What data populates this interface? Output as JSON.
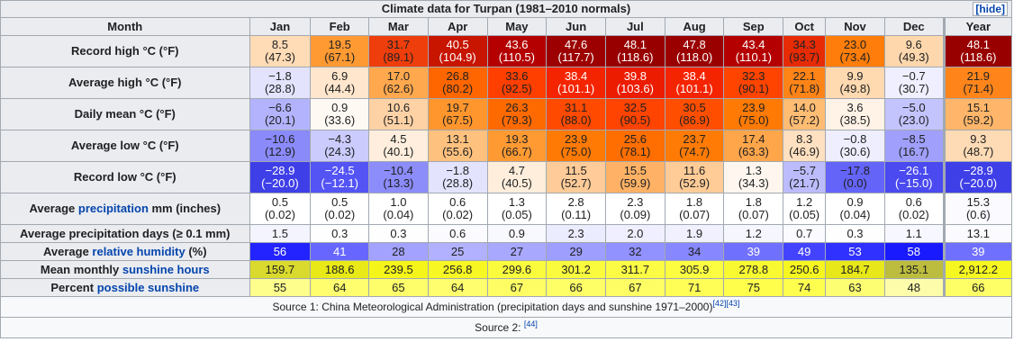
{
  "title": "Climate data for Turpan (1981–2010 normals)",
  "hide_label": "[hide]",
  "header": {
    "month": "Month",
    "months": [
      "Jan",
      "Feb",
      "Mar",
      "Apr",
      "May",
      "Jun",
      "Jul",
      "Aug",
      "Sep",
      "Oct",
      "Nov",
      "Dec",
      "Year"
    ]
  },
  "rows": [
    {
      "label": "Record high °C (°F)",
      "cells": [
        {
          "v": "8.5",
          "f": "(47.3)",
          "bg": "#ffdbb6",
          "fg": "#202122"
        },
        {
          "v": "19.5",
          "f": "(67.1)",
          "bg": "#ff9a33",
          "fg": "#202122"
        },
        {
          "v": "31.7",
          "f": "(89.1)",
          "bg": "#ee3e0c",
          "fg": "#202122"
        },
        {
          "v": "40.5",
          "f": "(104.9)",
          "bg": "#c71500",
          "fg": "#ffffff"
        },
        {
          "v": "43.6",
          "f": "(110.5)",
          "bg": "#b40000",
          "fg": "#ffffff"
        },
        {
          "v": "47.6",
          "f": "(117.7)",
          "bg": "#9c0000",
          "fg": "#ffffff"
        },
        {
          "v": "48.1",
          "f": "(118.6)",
          "bg": "#980000",
          "fg": "#ffffff"
        },
        {
          "v": "47.8",
          "f": "(118.0)",
          "bg": "#9a0000",
          "fg": "#ffffff"
        },
        {
          "v": "43.4",
          "f": "(110.1)",
          "bg": "#b40000",
          "fg": "#ffffff"
        },
        {
          "v": "34.3",
          "f": "(93.7)",
          "bg": "#e62b05",
          "fg": "#202122"
        },
        {
          "v": "23.0",
          "f": "(73.4)",
          "bg": "#ff7d0a",
          "fg": "#202122"
        },
        {
          "v": "9.6",
          "f": "(49.3)",
          "bg": "#ffd7ad",
          "fg": "#202122"
        },
        {
          "v": "48.1",
          "f": "(118.6)",
          "bg": "#980000",
          "fg": "#ffffff"
        }
      ]
    },
    {
      "label": "Average high °C (°F)",
      "cells": [
        {
          "v": "−1.8",
          "f": "(28.8)",
          "bg": "#e3e3fe",
          "fg": "#202122"
        },
        {
          "v": "6.9",
          "f": "(44.4)",
          "bg": "#ffe6cc",
          "fg": "#202122"
        },
        {
          "v": "17.0",
          "f": "(62.6)",
          "bg": "#ffa84e",
          "fg": "#202122"
        },
        {
          "v": "26.8",
          "f": "(80.2)",
          "bg": "#ff6600",
          "fg": "#202122"
        },
        {
          "v": "33.6",
          "f": "(92.5)",
          "bg": "#ff3f00",
          "fg": "#202122"
        },
        {
          "v": "38.4",
          "f": "(101.1)",
          "bg": "#f52400",
          "fg": "#ffffff"
        },
        {
          "v": "39.8",
          "f": "(103.6)",
          "bg": "#ec1c00",
          "fg": "#ffffff"
        },
        {
          "v": "38.4",
          "f": "(101.1)",
          "bg": "#f52400",
          "fg": "#ffffff"
        },
        {
          "v": "32.3",
          "f": "(90.1)",
          "bg": "#ff4400",
          "fg": "#202122"
        },
        {
          "v": "22.1",
          "f": "(71.8)",
          "bg": "#ff8418",
          "fg": "#202122"
        },
        {
          "v": "9.9",
          "f": "(49.8)",
          "bg": "#ffd9b0",
          "fg": "#202122"
        },
        {
          "v": "−0.7",
          "f": "(30.7)",
          "bg": "#efefff",
          "fg": "#202122"
        },
        {
          "v": "21.9",
          "f": "(71.4)",
          "bg": "#ff851b",
          "fg": "#202122"
        }
      ]
    },
    {
      "label": "Daily mean °C (°F)",
      "cells": [
        {
          "v": "−6.6",
          "f": "(20.1)",
          "bg": "#b3b3fd",
          "fg": "#202122"
        },
        {
          "v": "0.9",
          "f": "(33.6)",
          "bg": "#fff9f4",
          "fg": "#202122"
        },
        {
          "v": "10.6",
          "f": "(51.1)",
          "bg": "#ffd2a6",
          "fg": "#202122"
        },
        {
          "v": "19.7",
          "f": "(67.5)",
          "bg": "#ff962d",
          "fg": "#202122"
        },
        {
          "v": "26.3",
          "f": "(79.3)",
          "bg": "#ff6a00",
          "fg": "#202122"
        },
        {
          "v": "31.1",
          "f": "(88.0)",
          "bg": "#ff4a00",
          "fg": "#202122"
        },
        {
          "v": "32.5",
          "f": "(90.5)",
          "bg": "#ff4300",
          "fg": "#202122"
        },
        {
          "v": "30.5",
          "f": "(86.9)",
          "bg": "#ff4e00",
          "fg": "#202122"
        },
        {
          "v": "23.9",
          "f": "(75.0)",
          "bg": "#ff7a04",
          "fg": "#202122"
        },
        {
          "v": "14.0",
          "f": "(57.2)",
          "bg": "#ffbc73",
          "fg": "#202122"
        },
        {
          "v": "3.6",
          "f": "(38.5)",
          "bg": "#fff2e6",
          "fg": "#202122"
        },
        {
          "v": "−5.0",
          "f": "(23.0)",
          "bg": "#c3c3fe",
          "fg": "#202122"
        },
        {
          "v": "15.1",
          "f": "(59.2)",
          "bg": "#ffb66a",
          "fg": "#202122"
        }
      ]
    },
    {
      "label": "Average low °C (°F)",
      "cells": [
        {
          "v": "−10.6",
          "f": "(12.9)",
          "bg": "#8a8afb",
          "fg": "#202122"
        },
        {
          "v": "−4.3",
          "f": "(24.3)",
          "bg": "#cbcbfe",
          "fg": "#202122"
        },
        {
          "v": "4.5",
          "f": "(40.1)",
          "bg": "#ffeedd",
          "fg": "#202122"
        },
        {
          "v": "13.1",
          "f": "(55.6)",
          "bg": "#ffc17e",
          "fg": "#202122"
        },
        {
          "v": "19.3",
          "f": "(66.7)",
          "bg": "#ff9a33",
          "fg": "#202122"
        },
        {
          "v": "23.9",
          "f": "(75.0)",
          "bg": "#ff7a04",
          "fg": "#202122"
        },
        {
          "v": "25.6",
          "f": "(78.1)",
          "bg": "#ff6e00",
          "fg": "#202122"
        },
        {
          "v": "23.7",
          "f": "(74.7)",
          "bg": "#ff7b06",
          "fg": "#202122"
        },
        {
          "v": "17.4",
          "f": "(63.3)",
          "bg": "#ffa54a",
          "fg": "#202122"
        },
        {
          "v": "8.3",
          "f": "(46.9)",
          "bg": "#ffe0c0",
          "fg": "#202122"
        },
        {
          "v": "−0.8",
          "f": "(30.6)",
          "bg": "#eeeeff",
          "fg": "#202122"
        },
        {
          "v": "−8.5",
          "f": "(16.7)",
          "bg": "#a0a0fc",
          "fg": "#202122"
        },
        {
          "v": "9.3",
          "f": "(48.7)",
          "bg": "#ffdbb5",
          "fg": "#202122"
        }
      ]
    },
    {
      "label": "Record low °C (°F)",
      "cells": [
        {
          "v": "−28.9",
          "f": "(−20.0)",
          "bg": "#3f3fe8",
          "fg": "#ffffff"
        },
        {
          "v": "−24.5",
          "f": "(−12.1)",
          "bg": "#5454f5",
          "fg": "#ffffff"
        },
        {
          "v": "−10.4",
          "f": "(13.3)",
          "bg": "#8c8cfb",
          "fg": "#202122"
        },
        {
          "v": "−1.8",
          "f": "(28.8)",
          "bg": "#e3e3fe",
          "fg": "#202122"
        },
        {
          "v": "4.7",
          "f": "(40.5)",
          "bg": "#ffeedc",
          "fg": "#202122"
        },
        {
          "v": "11.5",
          "f": "(52.7)",
          "bg": "#ffcb98",
          "fg": "#202122"
        },
        {
          "v": "15.5",
          "f": "(59.9)",
          "bg": "#ffb266",
          "fg": "#202122"
        },
        {
          "v": "11.6",
          "f": "(52.9)",
          "bg": "#ffcb97",
          "fg": "#202122"
        },
        {
          "v": "1.3",
          "f": "(34.3)",
          "bg": "#fff7ef",
          "fg": "#202122"
        },
        {
          "v": "−5.7",
          "f": "(21.7)",
          "bg": "#bcbcfd",
          "fg": "#202122"
        },
        {
          "v": "−17.8",
          "f": "(0.0)",
          "bg": "#6464f9",
          "fg": "#202122"
        },
        {
          "v": "−26.1",
          "f": "(−15.0)",
          "bg": "#4a4af0",
          "fg": "#ffffff"
        },
        {
          "v": "−28.9",
          "f": "(−20.0)",
          "bg": "#3f3fe8",
          "fg": "#ffffff"
        }
      ]
    },
    {
      "label_pre": "Average ",
      "label_link": "precipitation",
      "label_post": " mm (inches)",
      "cells": [
        {
          "v": "0.5",
          "f": "(0.02)",
          "bg": "#ffffff",
          "fg": "#202122"
        },
        {
          "v": "0.5",
          "f": "(0.02)",
          "bg": "#ffffff",
          "fg": "#202122"
        },
        {
          "v": "1.0",
          "f": "(0.04)",
          "bg": "#ffffff",
          "fg": "#202122"
        },
        {
          "v": "0.6",
          "f": "(0.02)",
          "bg": "#ffffff",
          "fg": "#202122"
        },
        {
          "v": "1.3",
          "f": "(0.05)",
          "bg": "#ffffff",
          "fg": "#202122"
        },
        {
          "v": "2.8",
          "f": "(0.11)",
          "bg": "#ffffff",
          "fg": "#202122"
        },
        {
          "v": "2.3",
          "f": "(0.09)",
          "bg": "#ffffff",
          "fg": "#202122"
        },
        {
          "v": "1.8",
          "f": "(0.07)",
          "bg": "#ffffff",
          "fg": "#202122"
        },
        {
          "v": "1.8",
          "f": "(0.07)",
          "bg": "#ffffff",
          "fg": "#202122"
        },
        {
          "v": "1.2",
          "f": "(0.05)",
          "bg": "#ffffff",
          "fg": "#202122"
        },
        {
          "v": "0.9",
          "f": "(0.04)",
          "bg": "#ffffff",
          "fg": "#202122"
        },
        {
          "v": "0.6",
          "f": "(0.02)",
          "bg": "#ffffff",
          "fg": "#202122"
        },
        {
          "v": "15.3",
          "f": "(0.6)",
          "bg": "#fafaff",
          "fg": "#202122"
        }
      ]
    },
    {
      "label": "Average precipitation days (≥ 0.1 mm)",
      "single": true,
      "cells": [
        {
          "v": "1.5",
          "bg": "#f4f4ff",
          "fg": "#202122"
        },
        {
          "v": "0.3",
          "bg": "#fefeff",
          "fg": "#202122"
        },
        {
          "v": "0.3",
          "bg": "#fefeff",
          "fg": "#202122"
        },
        {
          "v": "0.6",
          "bg": "#fbfbff",
          "fg": "#202122"
        },
        {
          "v": "0.9",
          "bg": "#f8f8ff",
          "fg": "#202122"
        },
        {
          "v": "2.3",
          "bg": "#ececff",
          "fg": "#202122"
        },
        {
          "v": "2.0",
          "bg": "#efefff",
          "fg": "#202122"
        },
        {
          "v": "1.9",
          "bg": "#f0f0ff",
          "fg": "#202122"
        },
        {
          "v": "1.2",
          "bg": "#f6f6ff",
          "fg": "#202122"
        },
        {
          "v": "0.7",
          "bg": "#fafaff",
          "fg": "#202122"
        },
        {
          "v": "0.3",
          "bg": "#fefeff",
          "fg": "#202122"
        },
        {
          "v": "1.1",
          "bg": "#f7f7ff",
          "fg": "#202122"
        },
        {
          "v": "13.1",
          "bg": "#fbfbff",
          "fg": "#202122"
        }
      ]
    },
    {
      "label_pre": "Average ",
      "label_link": "relative humidity",
      "label_post": " (%)",
      "single": true,
      "cells": [
        {
          "v": "56",
          "bg": "#2323ff",
          "fg": "#ffffff"
        },
        {
          "v": "41",
          "bg": "#6767ff",
          "fg": "#ffffff"
        },
        {
          "v": "28",
          "bg": "#a3a3ff",
          "fg": "#202122"
        },
        {
          "v": "25",
          "bg": "#b1b1ff",
          "fg": "#202122"
        },
        {
          "v": "27",
          "bg": "#a8a8ff",
          "fg": "#202122"
        },
        {
          "v": "29",
          "bg": "#9e9eff",
          "fg": "#202122"
        },
        {
          "v": "32",
          "bg": "#9191ff",
          "fg": "#202122"
        },
        {
          "v": "34",
          "bg": "#8787ff",
          "fg": "#202122"
        },
        {
          "v": "39",
          "bg": "#7070ff",
          "fg": "#ffffff"
        },
        {
          "v": "49",
          "bg": "#4343ff",
          "fg": "#ffffff"
        },
        {
          "v": "53",
          "bg": "#3131ff",
          "fg": "#ffffff"
        },
        {
          "v": "58",
          "bg": "#1a1aff",
          "fg": "#ffffff"
        },
        {
          "v": "39",
          "bg": "#7070ff",
          "fg": "#ffffff"
        }
      ]
    },
    {
      "label_pre": "Mean monthly ",
      "label_link": "sunshine hours",
      "label_post": "",
      "single": true,
      "cells": [
        {
          "v": "159.7",
          "bg": "#d9d92e",
          "fg": "#202122"
        },
        {
          "v": "188.6",
          "bg": "#e9e917",
          "fg": "#202122"
        },
        {
          "v": "239.5",
          "bg": "#f5f51a",
          "fg": "#202122"
        },
        {
          "v": "256.8",
          "bg": "#f7f724",
          "fg": "#202122"
        },
        {
          "v": "299.6",
          "bg": "#fbfb3d",
          "fg": "#202122"
        },
        {
          "v": "301.2",
          "bg": "#fbfb3e",
          "fg": "#202122"
        },
        {
          "v": "311.7",
          "bg": "#fcfc44",
          "fg": "#202122"
        },
        {
          "v": "305.9",
          "bg": "#fcfc41",
          "fg": "#202122"
        },
        {
          "v": "278.8",
          "bg": "#f9f931",
          "fg": "#202122"
        },
        {
          "v": "250.6",
          "bg": "#f6f620",
          "fg": "#202122"
        },
        {
          "v": "184.7",
          "bg": "#e7e719",
          "fg": "#202122"
        },
        {
          "v": "135.1",
          "bg": "#bcbc3f",
          "fg": "#202122"
        },
        {
          "v": "2,912.2",
          "bg": "#f6f621",
          "fg": "#202122"
        }
      ]
    },
    {
      "label_pre": "Percent ",
      "label_link": "possible sunshine",
      "label_post": "",
      "single": true,
      "cells": [
        {
          "v": "55",
          "bg": "#fefe8c",
          "fg": "#202122"
        },
        {
          "v": "64",
          "bg": "#fefe6e",
          "fg": "#202122"
        },
        {
          "v": "65",
          "bg": "#fefe6b",
          "fg": "#202122"
        },
        {
          "v": "64",
          "bg": "#fefe6e",
          "fg": "#202122"
        },
        {
          "v": "67",
          "bg": "#fefe64",
          "fg": "#202122"
        },
        {
          "v": "66",
          "bg": "#fefe67",
          "fg": "#202122"
        },
        {
          "v": "67",
          "bg": "#fefe64",
          "fg": "#202122"
        },
        {
          "v": "71",
          "bg": "#fefe57",
          "fg": "#202122"
        },
        {
          "v": "75",
          "bg": "#fefe4b",
          "fg": "#202122"
        },
        {
          "v": "74",
          "bg": "#fefe4e",
          "fg": "#202122"
        },
        {
          "v": "63",
          "bg": "#fefe72",
          "fg": "#202122"
        },
        {
          "v": "48",
          "bg": "#fcfcaa",
          "fg": "#202122"
        },
        {
          "v": "66",
          "bg": "#fefe67",
          "fg": "#202122"
        }
      ]
    }
  ],
  "source1_text": "Source 1: China Meteorological Administration (precipitation days and sunshine 1971–2000)",
  "source1_refs": [
    "[42]",
    "[43]"
  ],
  "source2_text": "Source 2: ",
  "source2_ref": "[44]"
}
